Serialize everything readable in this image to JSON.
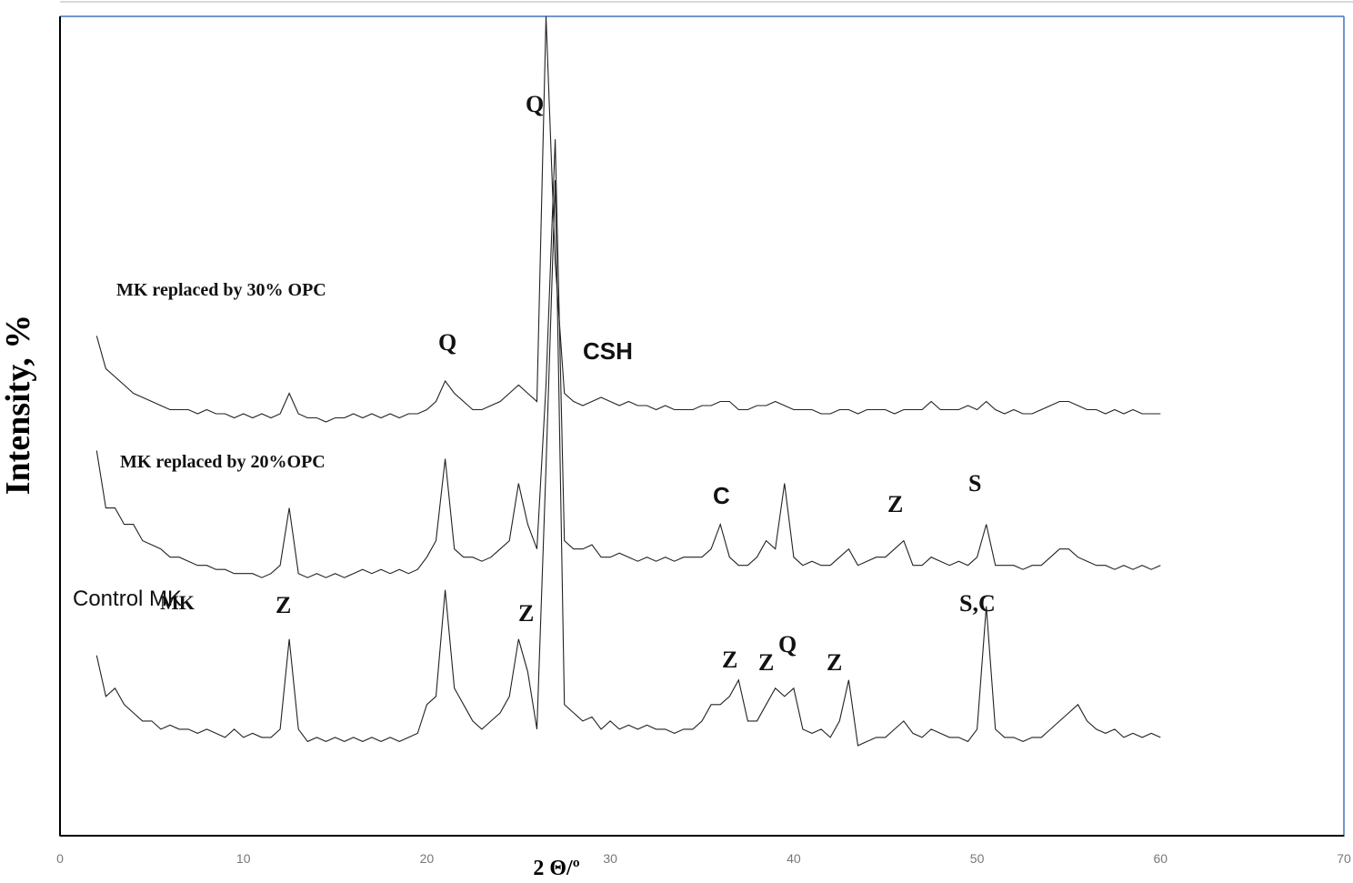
{
  "chart_data": {
    "type": "line",
    "x_label": "2 Θ/º",
    "y_label": "Intensity, %",
    "xlim": [
      0,
      70
    ],
    "xticks": [
      0,
      10,
      20,
      30,
      40,
      50,
      60,
      70
    ],
    "ylim": [
      0,
      100
    ],
    "x": [
      2,
      2.5,
      3,
      3.5,
      4,
      4.5,
      5,
      5.5,
      6,
      6.5,
      7,
      7.5,
      8,
      8.5,
      9,
      9.5,
      10,
      10.5,
      11,
      11.5,
      12,
      12.5,
      13,
      13.5,
      14,
      14.5,
      15,
      15.5,
      16,
      16.5,
      17,
      17.5,
      18,
      18.5,
      19,
      19.5,
      20,
      20.5,
      21,
      21.5,
      22,
      22.5,
      23,
      23.5,
      24,
      24.5,
      25,
      25.5,
      26,
      26.5,
      27,
      27.5,
      28,
      28.5,
      29,
      29.5,
      30,
      30.5,
      31,
      31.5,
      32,
      32.5,
      33,
      33.5,
      34,
      34.5,
      35,
      35.5,
      36,
      36.5,
      37,
      37.5,
      38,
      38.5,
      39,
      39.5,
      40,
      40.5,
      41,
      41.5,
      42,
      42.5,
      43,
      43.5,
      44,
      44.5,
      45,
      45.5,
      46,
      46.5,
      47,
      47.5,
      48,
      48.5,
      49,
      49.5,
      50,
      50.5,
      51,
      51.5,
      52,
      52.5,
      53,
      53.5,
      54,
      54.5,
      55,
      55.5,
      56,
      56.5,
      57,
      57.5,
      58,
      58.5,
      59,
      59.5,
      60
    ],
    "series": [
      {
        "name": "Control MK",
        "color": "#222222",
        "values": [
          22,
          17,
          18,
          16,
          15,
          14,
          14,
          13,
          13.5,
          13,
          13,
          12.5,
          13,
          12.5,
          12,
          13,
          12,
          12.5,
          12,
          12,
          13,
          24,
          13,
          11.5,
          12,
          11.5,
          12,
          11.5,
          12,
          11.5,
          12,
          11.5,
          12,
          11.5,
          12,
          12.5,
          16,
          17,
          30,
          18,
          16,
          14,
          13,
          14,
          15,
          17,
          24,
          20,
          13,
          45,
          80,
          16,
          15,
          14,
          14.5,
          13,
          14,
          13,
          13.5,
          13,
          13.5,
          13,
          13,
          12.5,
          13,
          13,
          14,
          16,
          16,
          17,
          19,
          14,
          14,
          16,
          18,
          17,
          18,
          13,
          12.5,
          13,
          12,
          14,
          19,
          11,
          11.5,
          12,
          12,
          13,
          14,
          12.5,
          12,
          13,
          12.5,
          12,
          12,
          11.5,
          13,
          28,
          13,
          12,
          12,
          11.5,
          12,
          12,
          13,
          14,
          15,
          16,
          14,
          13,
          12.5,
          13,
          12,
          12.5,
          12,
          12.5,
          12
        ]
      },
      {
        "name": "MK replaced by 20%OPC",
        "color": "#222222",
        "values": [
          47,
          40,
          40,
          38,
          38,
          36,
          35.5,
          35,
          34,
          34,
          33.5,
          33,
          33,
          32.5,
          32.5,
          32,
          32,
          32,
          31.5,
          32,
          33,
          40,
          32,
          31.5,
          32,
          31.5,
          32,
          31.5,
          32,
          32.5,
          32,
          32.5,
          32,
          32.5,
          32,
          32.5,
          34,
          36,
          46,
          35,
          34,
          34,
          33.5,
          34,
          35,
          36,
          43,
          38,
          35,
          55,
          85,
          36,
          35,
          35,
          35.5,
          34,
          34,
          34.5,
          34,
          33.5,
          34,
          33.5,
          34,
          33.5,
          34,
          34,
          34,
          35,
          38,
          34,
          33,
          33,
          34,
          36,
          35,
          43,
          34,
          33,
          33.5,
          33,
          33,
          34,
          35,
          33,
          33.5,
          34,
          34,
          35,
          36,
          33,
          33,
          34,
          33.5,
          33,
          33.5,
          33,
          34,
          38,
          33,
          33,
          33,
          32.5,
          33,
          33,
          34,
          35,
          35,
          34,
          33.5,
          33,
          33,
          32.5,
          33,
          32.5,
          33,
          32.5,
          33
        ]
      },
      {
        "name": "MK replaced by 30% OPC",
        "color": "#222222",
        "values": [
          61,
          57,
          56,
          55,
          54,
          53.5,
          53,
          52.5,
          52,
          52,
          52,
          51.5,
          52,
          51.5,
          51.5,
          51,
          51.5,
          51,
          51.5,
          51,
          51.5,
          54,
          51.5,
          51,
          51,
          50.5,
          51,
          51,
          51.5,
          51,
          51.5,
          51,
          51.5,
          51,
          51.5,
          51.5,
          52,
          53,
          55.5,
          54,
          53,
          52,
          52,
          52.5,
          53,
          54,
          55,
          54,
          53,
          100,
          70,
          54,
          53,
          52.5,
          53,
          53.5,
          53,
          52.5,
          53,
          52.5,
          52.5,
          52,
          52.5,
          52,
          52,
          52,
          52.5,
          52.5,
          53,
          53,
          52,
          52,
          52.5,
          52.5,
          53,
          52.5,
          52,
          52,
          52,
          51.5,
          51.5,
          52,
          52,
          51.5,
          52,
          52,
          52,
          51.5,
          52,
          52,
          52,
          53,
          52,
          52,
          52,
          52.5,
          52,
          53,
          52,
          51.5,
          52,
          51.5,
          51.5,
          52,
          52.5,
          53,
          53,
          52.5,
          52,
          52,
          51.5,
          52,
          51.5,
          52,
          51.5,
          51.5,
          51.5
        ]
      }
    ],
    "annotations": [
      "Q",
      "Q",
      "CSH",
      "C",
      "Z",
      "S",
      "MK",
      "Z",
      "Z",
      "S,C",
      "Z",
      "Z",
      "Q",
      "Z"
    ]
  }
}
